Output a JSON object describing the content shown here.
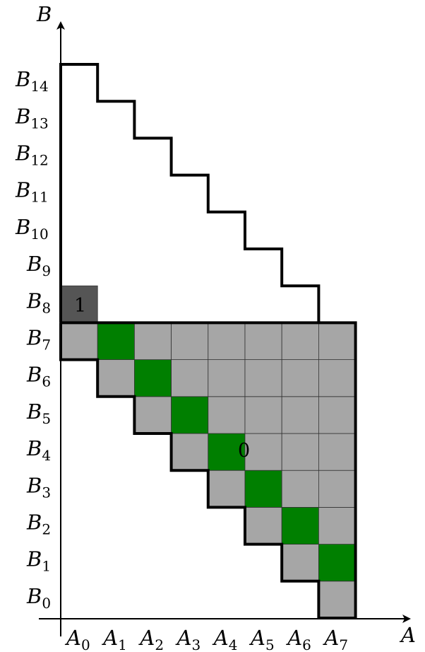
{
  "diagram": {
    "axis_x_label": "A",
    "axis_y_label": "B",
    "x_tick_letter": "A",
    "y_tick_letter": "B",
    "x_ticks": [
      "0",
      "1",
      "2",
      "3",
      "4",
      "5",
      "6",
      "7"
    ],
    "y_ticks": [
      "0",
      "1",
      "2",
      "3",
      "4",
      "5",
      "6",
      "7",
      "8",
      "9",
      "10",
      "11",
      "12",
      "13",
      "14"
    ],
    "region_zero_label": "0",
    "region_one_label": "1",
    "colors": {
      "gray_region": "#a6a6a6",
      "green_cells": "#007f00",
      "dark_cell": "#555555",
      "outline": "#000000"
    }
  }
}
